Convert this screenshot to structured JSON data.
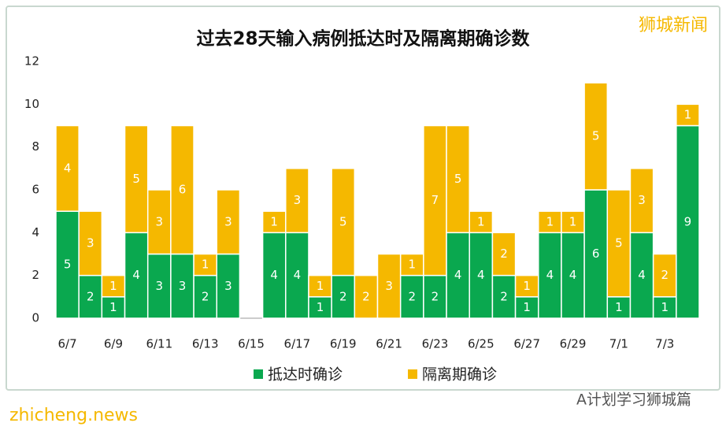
{
  "chart_data": {
    "type": "stacked_bar",
    "title": "过去28天输入病例抵达时及隔离期确诊数",
    "categories": [
      "6/7",
      null,
      "6/9",
      null,
      "6/11",
      null,
      "6/13",
      null,
      "6/15",
      null,
      "6/17",
      null,
      "6/19",
      null,
      "6/21",
      null,
      "6/23",
      null,
      "6/25",
      null,
      "6/27",
      null,
      "6/29",
      null,
      "7/1",
      null,
      "7/3",
      null
    ],
    "series": [
      {
        "name": "抵达时确诊",
        "color": "#0aa84f",
        "values": [
          5,
          2,
          1,
          4,
          3,
          3,
          2,
          3,
          0,
          4,
          4,
          1,
          2,
          0,
          0,
          2,
          2,
          4,
          4,
          2,
          1,
          4,
          4,
          6,
          1,
          4,
          1,
          9
        ]
      },
      {
        "name": "隔离期确诊",
        "color": "#f5b800",
        "values": [
          4,
          3,
          1,
          5,
          3,
          6,
          1,
          3,
          0,
          1,
          3,
          1,
          5,
          2,
          3,
          1,
          7,
          5,
          1,
          2,
          1,
          1,
          1,
          5,
          5,
          3,
          2,
          1
        ]
      }
    ],
    "ylim": [
      0,
      12
    ],
    "yticks": [
      0,
      2,
      4,
      6,
      8,
      10,
      12
    ],
    "grid": false,
    "legend": "bottom",
    "watermark": "狮城新闻",
    "footer": "A计划学习狮城篇",
    "site": "zhicheng.news"
  }
}
